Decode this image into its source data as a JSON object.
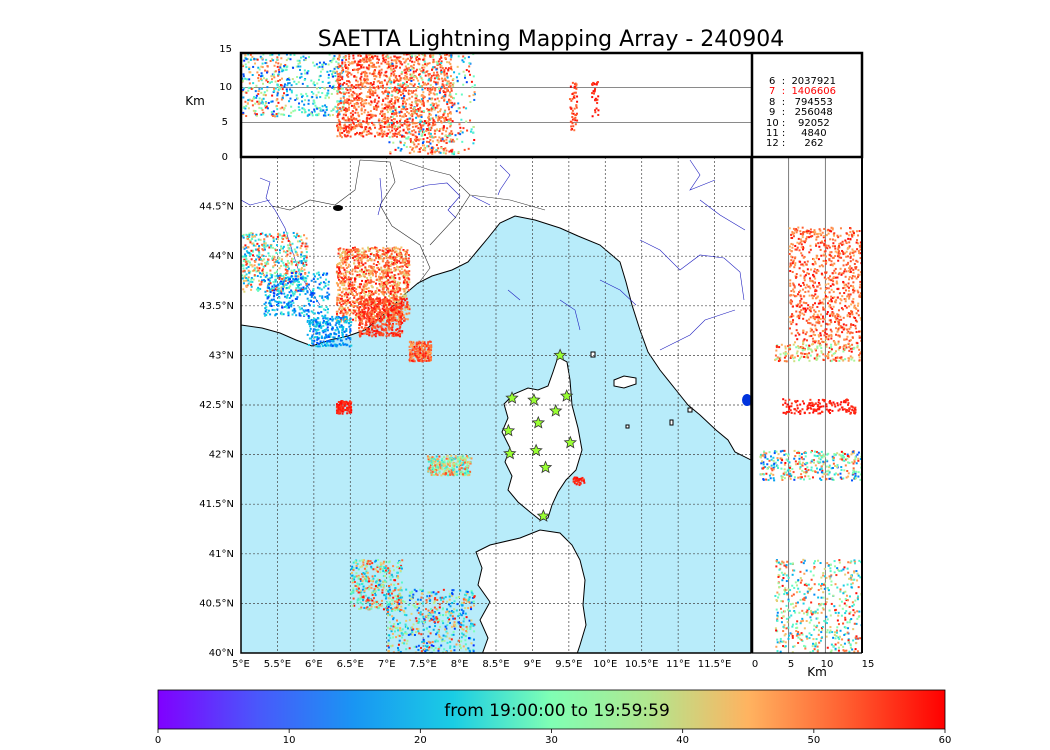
{
  "chart_data": {
    "type": "scatter",
    "title": "SAETTA Lightning Mapping Array - 240904",
    "map": {
      "lon_range": [
        5,
        12
      ],
      "lat_range": [
        40,
        45
      ],
      "lon_ticks": [
        "5°E",
        "5.5°E",
        "6°E",
        "6.5°E",
        "7°E",
        "7.5°E",
        "8°E",
        "8.5°E",
        "9°E",
        "9.5°E",
        "10°E",
        "10.5°E",
        "11°E",
        "11.5°E"
      ],
      "lat_ticks": [
        "40°N",
        "40.5°N",
        "41°N",
        "41.5°N",
        "42°N",
        "42.5°N",
        "43°N",
        "43.5°N",
        "44°N",
        "44.5°N"
      ],
      "grid": true,
      "sea_color": "#b8ecfa",
      "land_color": "#ffffff"
    },
    "altitude_panel": {
      "ylabel": "Km",
      "y_ticks": [
        "0",
        "5",
        "10",
        "15"
      ],
      "y_range": [
        0,
        15
      ]
    },
    "side_panel": {
      "xlabel": "Km",
      "x_ticks": [
        "0",
        "5",
        "10",
        "15"
      ],
      "x_range": [
        0,
        15
      ]
    },
    "station_counts": [
      {
        "label": "6  :  2037921",
        "highlight": false
      },
      {
        "label": "7  :  1406606",
        "highlight": true
      },
      {
        "label": "8  :   794553",
        "highlight": false
      },
      {
        "label": "9  :   256048",
        "highlight": false
      },
      {
        "label": "10 :    92052",
        "highlight": false
      },
      {
        "label": "11 :     4840",
        "highlight": false
      },
      {
        "label": "12 :      262",
        "highlight": false
      }
    ],
    "stations": [
      {
        "lon": 9.38,
        "lat": 43.0
      },
      {
        "lon": 8.72,
        "lat": 42.57
      },
      {
        "lon": 9.02,
        "lat": 42.55
      },
      {
        "lon": 9.47,
        "lat": 42.59
      },
      {
        "lon": 9.32,
        "lat": 42.44
      },
      {
        "lon": 9.08,
        "lat": 42.32
      },
      {
        "lon": 8.67,
        "lat": 42.24
      },
      {
        "lon": 9.52,
        "lat": 42.12
      },
      {
        "lon": 8.69,
        "lat": 42.01
      },
      {
        "lon": 9.05,
        "lat": 42.04
      },
      {
        "lon": 9.18,
        "lat": 41.87
      },
      {
        "lon": 9.15,
        "lat": 41.38
      }
    ],
    "clusters": [
      {
        "lon": [
          6.3,
          7.3
        ],
        "lat": [
          43.35,
          44.1
        ],
        "t": [
          40,
          60
        ],
        "n": 1200
      },
      {
        "lon": [
          6.6,
          7.2
        ],
        "lat": [
          43.2,
          43.6
        ],
        "t": [
          50,
          60
        ],
        "n": 400
      },
      {
        "lon": [
          5.0,
          5.9
        ],
        "lat": [
          43.65,
          44.25
        ],
        "t": [
          10,
          60
        ],
        "n": 500
      },
      {
        "lon": [
          5.3,
          6.2
        ],
        "lat": [
          43.4,
          43.85
        ],
        "t": [
          3,
          25
        ],
        "n": 300
      },
      {
        "lon": [
          5.9,
          6.5
        ],
        "lat": [
          43.1,
          43.4
        ],
        "t": [
          5,
          20
        ],
        "n": 250
      },
      {
        "lon": [
          7.3,
          7.6
        ],
        "lat": [
          42.95,
          43.15
        ],
        "t": [
          45,
          60
        ],
        "n": 200
      },
      {
        "lon": [
          6.3,
          6.5
        ],
        "lat": [
          42.42,
          42.55
        ],
        "t": [
          55,
          60
        ],
        "n": 100
      },
      {
        "lon": [
          7.55,
          8.15
        ],
        "lat": [
          41.8,
          42.0
        ],
        "t": [
          18,
          55
        ],
        "n": 300
      },
      {
        "lon": [
          9.55,
          9.7
        ],
        "lat": [
          41.7,
          41.78
        ],
        "t": [
          55,
          60
        ],
        "n": 40
      },
      {
        "lon": [
          6.5,
          7.2
        ],
        "lat": [
          40.45,
          40.95
        ],
        "t": [
          10,
          60
        ],
        "n": 350
      },
      {
        "lon": [
          7.0,
          8.2
        ],
        "lat": [
          40.0,
          40.65
        ],
        "t": [
          3,
          60
        ],
        "n": 500
      }
    ],
    "altitude_clusters": [
      {
        "lon": [
          5.0,
          5.6
        ],
        "alt": [
          6,
          15
        ],
        "t": [
          3,
          60
        ],
        "n": 250
      },
      {
        "lon": [
          5.6,
          6.4
        ],
        "alt": [
          6,
          15
        ],
        "t": [
          3,
          40
        ],
        "n": 250
      },
      {
        "lon": [
          6.3,
          7.3
        ],
        "alt": [
          3,
          15
        ],
        "t": [
          45,
          60
        ],
        "n": 900
      },
      {
        "lon": [
          7.3,
          7.9
        ],
        "alt": [
          0.5,
          15
        ],
        "t": [
          45,
          60
        ],
        "n": 500
      },
      {
        "lon": [
          7.0,
          8.2
        ],
        "alt": [
          0.5,
          15
        ],
        "t": [
          5,
          60
        ],
        "n": 300
      },
      {
        "lon": [
          9.5,
          9.6
        ],
        "alt": [
          4,
          11
        ],
        "t": [
          50,
          60
        ],
        "n": 50
      },
      {
        "lon": [
          9.8,
          9.9
        ],
        "alt": [
          6,
          11
        ],
        "t": [
          55,
          60
        ],
        "n": 30
      }
    ],
    "side_clusters": [
      {
        "alt": [
          5,
          15
        ],
        "lat": [
          43.15,
          44.3
        ],
        "t": [
          45,
          60
        ],
        "n": 800
      },
      {
        "alt": [
          3,
          15
        ],
        "lat": [
          42.95,
          43.15
        ],
        "t": [
          30,
          60
        ],
        "n": 200
      },
      {
        "alt": [
          4,
          14
        ],
        "lat": [
          42.42,
          42.57
        ],
        "t": [
          55,
          60
        ],
        "n": 150
      },
      {
        "alt": [
          1,
          15
        ],
        "lat": [
          41.75,
          42.05
        ],
        "t": [
          5,
          60
        ],
        "n": 350
      },
      {
        "alt": [
          3,
          15
        ],
        "lat": [
          40.0,
          40.95
        ],
        "t": [
          10,
          60
        ],
        "n": 500
      }
    ],
    "colorbar": {
      "label": "from 19:00:00 to 19:59:59",
      "ticks": [
        "0",
        "10",
        "20",
        "30",
        "40",
        "50",
        "60"
      ],
      "range": [
        0,
        60
      ],
      "colormap": "rainbow"
    }
  }
}
